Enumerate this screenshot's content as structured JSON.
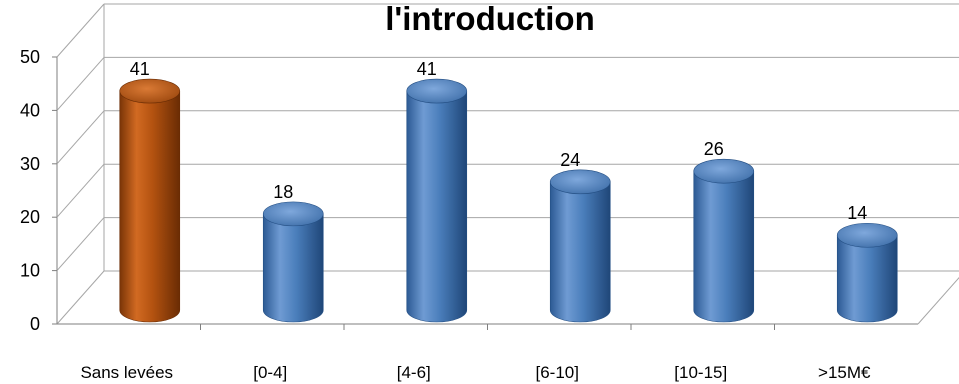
{
  "chart_data": {
    "type": "bar",
    "title": "l'introduction",
    "xlabel": "",
    "ylabel": "",
    "categories": [
      "Sans levées",
      "[0-4]",
      "[4-6]",
      "[6-10]",
      "[10-15]",
      ">15M€"
    ],
    "values": [
      41,
      18,
      41,
      24,
      26,
      14
    ],
    "data_labels": [
      "41",
      "18",
      "41",
      "24",
      "26",
      "14"
    ],
    "y_ticks": [
      "0",
      "10",
      "20",
      "30",
      "40",
      "50"
    ],
    "ylim": [
      0,
      50
    ],
    "grid": true,
    "legend": "none",
    "style": "3d-cylinder",
    "highlight_index": 0,
    "colors": {
      "default_bar": "#4A7EBB",
      "highlight_bar": "#B35210",
      "gridline": "#A6A6A6",
      "axis": "#7F7F7F"
    }
  }
}
